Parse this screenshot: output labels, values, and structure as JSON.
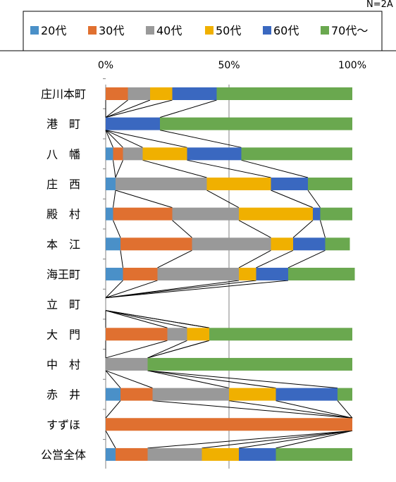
{
  "note": "N=2A",
  "chart_data": {
    "type": "bar",
    "stacked": true,
    "orientation": "horizontal",
    "xlim": [
      0,
      100
    ],
    "ticks": [
      "0%",
      "50%",
      "100%"
    ],
    "gridline_at": 50,
    "legend_position": "top",
    "categories": [
      "庄川本町",
      "港　町",
      "八　幡",
      "庄　西",
      "殿　村",
      "本　江",
      "海王町",
      "立　町",
      "大　門",
      "中　村",
      "赤　井",
      "すずほ",
      "公営全体"
    ],
    "series": [
      {
        "name": "20代",
        "color": "#4a90c8",
        "values": [
          0,
          0,
          3,
          4,
          3,
          6,
          7,
          0,
          0,
          0,
          6,
          0,
          4
        ]
      },
      {
        "name": "30代",
        "color": "#e07030",
        "values": [
          9,
          0,
          4,
          0,
          24,
          29,
          14,
          0,
          25,
          0,
          13,
          100,
          13
        ]
      },
      {
        "name": "40代",
        "color": "#999999",
        "values": [
          9,
          0,
          8,
          37,
          27,
          32,
          33,
          0,
          8,
          17,
          31,
          0,
          22
        ]
      },
      {
        "name": "50代",
        "color": "#f0b000",
        "values": [
          9,
          0,
          18,
          26,
          30,
          9,
          7,
          0,
          9,
          0,
          19,
          0,
          15
        ]
      },
      {
        "name": "60代",
        "color": "#3a68c0",
        "values": [
          18,
          22,
          22,
          15,
          3,
          13,
          13,
          0,
          0,
          0,
          25,
          0,
          15
        ]
      },
      {
        "name": "70代～",
        "color": "#6aa84f",
        "values": [
          55,
          78,
          45,
          18,
          13,
          10,
          27,
          0,
          58,
          83,
          6,
          0,
          31
        ]
      }
    ]
  }
}
